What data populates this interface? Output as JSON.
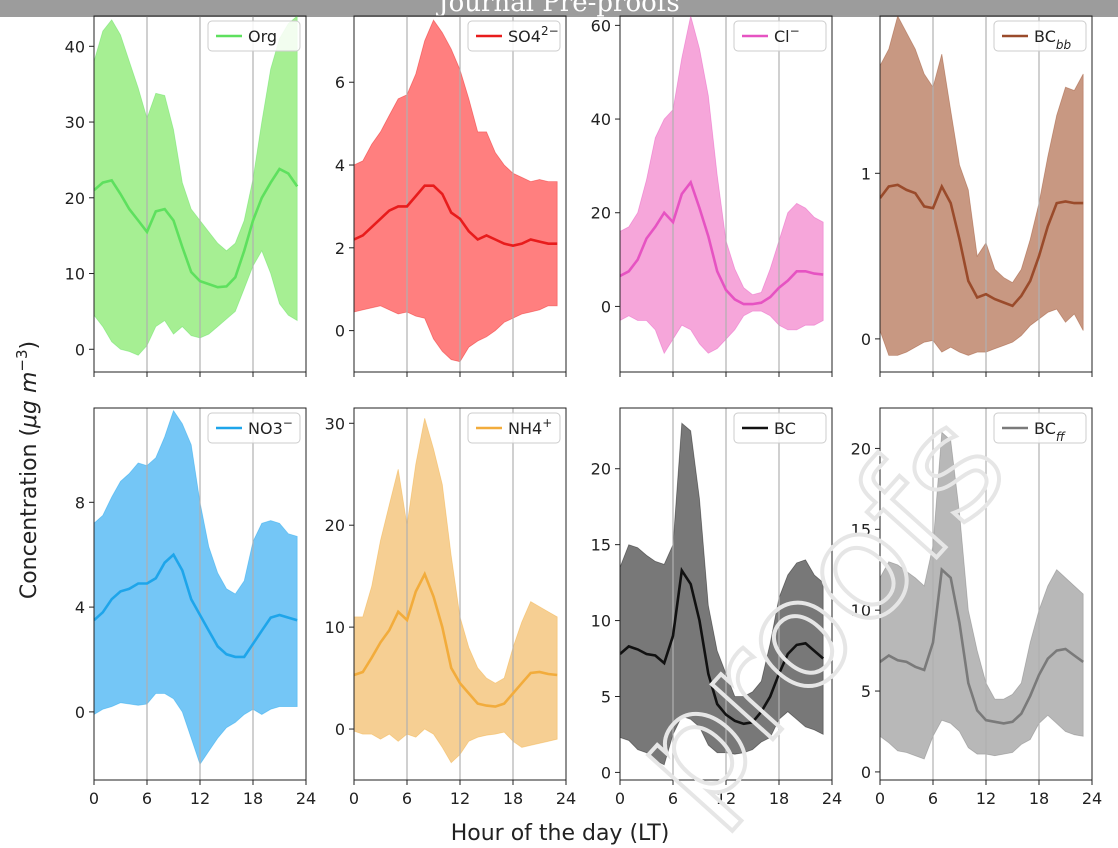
{
  "banner": {
    "text": "Journal Pre-proofs"
  },
  "watermark": {
    "text": "proofs"
  },
  "figure": {
    "ylabel_prefix": "Concentration (",
    "ylabel_unit": "μg m",
    "ylabel_exp": "−3",
    "ylabel_suffix": ")",
    "xlabel": "Hour of the day (LT)"
  },
  "chart_data": [
    {
      "type": "area",
      "legend": "Org",
      "legend_sub": "",
      "color": "#5ee05e",
      "fill": "#a6ef93",
      "alpha": 1,
      "xlim": [
        0,
        24
      ],
      "ylim": [
        -3,
        44
      ],
      "yticks": [
        0,
        10,
        20,
        30,
        40
      ],
      "xticks": [
        0,
        6,
        12,
        18,
        24
      ],
      "x": [
        0,
        1,
        2,
        3,
        4,
        5,
        6,
        7,
        8,
        9,
        10,
        11,
        12,
        13,
        14,
        15,
        16,
        17,
        18,
        19,
        20,
        21,
        22,
        23
      ],
      "mean": [
        21,
        22,
        22.3,
        20.5,
        18.5,
        17,
        15.5,
        18.2,
        18.5,
        17,
        13.5,
        10.2,
        9,
        8.6,
        8.2,
        8.3,
        9.5,
        13,
        17,
        20,
        22,
        23.8,
        23.2,
        21.5
      ],
      "upper": [
        38,
        42,
        43.5,
        41.5,
        38,
        34.5,
        30.5,
        33.8,
        33.5,
        29,
        22,
        18.5,
        17,
        15.5,
        14,
        13,
        14,
        17,
        22.5,
        30,
        37,
        41,
        43,
        44
      ],
      "lower": [
        4.5,
        3,
        1,
        0,
        -0.3,
        -0.8,
        0.5,
        3,
        3.8,
        2,
        3,
        1.8,
        1.5,
        2,
        3,
        4,
        5,
        8,
        11,
        13,
        10,
        6,
        4.5,
        3.8
      ],
      "legend_pos": "top-right"
    },
    {
      "type": "area",
      "legend": "SO4",
      "legend_sub": "",
      "legend_sup": "2−",
      "color": "#e81c1c",
      "fill": "#ff7f7f",
      "alpha": 1,
      "xlim": [
        0,
        24
      ],
      "ylim": [
        -1,
        7.6
      ],
      "yticks": [
        0,
        2,
        4,
        6
      ],
      "xticks": [
        0,
        6,
        12,
        18,
        24
      ],
      "x": [
        0,
        1,
        2,
        3,
        4,
        5,
        6,
        7,
        8,
        9,
        10,
        11,
        12,
        13,
        14,
        15,
        16,
        17,
        18,
        19,
        20,
        21,
        22,
        23
      ],
      "mean": [
        2.2,
        2.3,
        2.5,
        2.7,
        2.9,
        3,
        3,
        3.25,
        3.5,
        3.5,
        3.3,
        2.85,
        2.7,
        2.4,
        2.2,
        2.3,
        2.2,
        2.1,
        2.05,
        2.1,
        2.2,
        2.15,
        2.1,
        2.1
      ],
      "upper": [
        4,
        4.1,
        4.5,
        4.8,
        5.2,
        5.6,
        5.7,
        6.2,
        7,
        7.5,
        7.2,
        6.8,
        6.3,
        5.6,
        4.8,
        4.8,
        4.3,
        4,
        3.8,
        3.7,
        3.6,
        3.65,
        3.6,
        3.6
      ],
      "lower": [
        0.45,
        0.5,
        0.55,
        0.6,
        0.5,
        0.4,
        0.45,
        0.35,
        0.3,
        -0.2,
        -0.5,
        -0.7,
        -0.75,
        -0.4,
        -0.25,
        -0.15,
        0,
        0.2,
        0.3,
        0.4,
        0.45,
        0.5,
        0.6,
        0.6
      ],
      "legend_pos": "top-right"
    },
    {
      "type": "area",
      "legend": "Cl",
      "legend_sub": "",
      "legend_sup": "−",
      "color": "#e653c2",
      "fill": "#f6a6da",
      "alpha": 1,
      "xlim": [
        0,
        24
      ],
      "ylim": [
        -14,
        62
      ],
      "yticks": [
        0,
        20,
        40,
        60
      ],
      "xticks": [
        0,
        6,
        12,
        18,
        24
      ],
      "x": [
        0,
        1,
        2,
        3,
        4,
        5,
        6,
        7,
        8,
        9,
        10,
        11,
        12,
        13,
        14,
        15,
        16,
        17,
        18,
        19,
        20,
        21,
        22,
        23
      ],
      "mean": [
        6.5,
        7.5,
        10,
        14.5,
        17,
        20,
        18,
        24,
        26.5,
        21,
        15,
        7.5,
        3.5,
        1.5,
        0.5,
        0.5,
        0.8,
        2,
        4,
        5.5,
        7.5,
        7.5,
        7,
        6.8
      ],
      "upper": [
        16,
        17,
        20,
        27,
        36,
        40,
        42,
        53,
        62,
        55,
        45,
        28,
        14,
        8,
        4,
        2.5,
        3,
        8,
        14,
        20,
        22,
        21,
        19,
        18
      ],
      "lower": [
        -3,
        -2,
        -3,
        -3,
        -5,
        -10,
        -7,
        -4,
        -5,
        -8,
        -10,
        -9,
        -7,
        -5,
        -2,
        -1,
        -1,
        -2,
        -4,
        -5,
        -5,
        -4,
        -4,
        -3
      ],
      "legend_pos": "top-right"
    },
    {
      "type": "area",
      "legend": "BC",
      "legend_sub": "bb",
      "color": "#9a4b2b",
      "fill": "#c89882",
      "alpha": 1,
      "xlim": [
        0,
        24
      ],
      "ylim": [
        -0.2,
        1.95
      ],
      "yticks": [
        0,
        1
      ],
      "xticks": [
        0,
        6,
        12,
        18,
        24
      ],
      "x": [
        0,
        1,
        2,
        3,
        4,
        5,
        6,
        7,
        8,
        9,
        10,
        11,
        12,
        13,
        14,
        15,
        16,
        17,
        18,
        19,
        20,
        21,
        22,
        23
      ],
      "mean": [
        0.85,
        0.92,
        0.93,
        0.9,
        0.88,
        0.8,
        0.79,
        0.92,
        0.82,
        0.6,
        0.35,
        0.25,
        0.27,
        0.24,
        0.22,
        0.2,
        0.26,
        0.35,
        0.5,
        0.68,
        0.82,
        0.83,
        0.82,
        0.82
      ],
      "upper": [
        1.65,
        1.75,
        1.95,
        1.85,
        1.75,
        1.6,
        1.52,
        1.72,
        1.38,
        1.05,
        0.9,
        0.5,
        0.58,
        0.42,
        0.37,
        0.34,
        0.42,
        0.6,
        0.82,
        1.1,
        1.35,
        1.52,
        1.5,
        1.6
      ],
      "lower": [
        0.05,
        -0.1,
        -0.1,
        -0.08,
        -0.05,
        -0.02,
        -0.01,
        -0.08,
        -0.05,
        -0.08,
        -0.1,
        -0.08,
        -0.08,
        -0.06,
        -0.04,
        -0.02,
        0.02,
        0.08,
        0.12,
        0.16,
        0.18,
        0.1,
        0.15,
        0.05
      ],
      "legend_pos": "top-right"
    },
    {
      "type": "area",
      "legend": "NO3",
      "legend_sub": "",
      "legend_sup": "−",
      "color": "#1ea5ea",
      "fill": "#74c6f6",
      "alpha": 1,
      "xlim": [
        0,
        24
      ],
      "ylim": [
        -2.6,
        11.6
      ],
      "yticks": [
        0,
        4,
        8
      ],
      "xticks": [
        0,
        6,
        12,
        18,
        24
      ],
      "x": [
        0,
        1,
        2,
        3,
        4,
        5,
        6,
        7,
        8,
        9,
        10,
        11,
        12,
        13,
        14,
        15,
        16,
        17,
        18,
        19,
        20,
        21,
        22,
        23
      ],
      "mean": [
        3.5,
        3.8,
        4.3,
        4.6,
        4.7,
        4.9,
        4.9,
        5.1,
        5.7,
        6,
        5.4,
        4.3,
        3.7,
        3.1,
        2.5,
        2.2,
        2.1,
        2.1,
        2.6,
        3.1,
        3.6,
        3.7,
        3.6,
        3.5
      ],
      "upper": [
        7.2,
        7.5,
        8.2,
        8.8,
        9.1,
        9.5,
        9.4,
        9.7,
        10.5,
        11.5,
        11,
        10.2,
        8,
        6.3,
        5.3,
        4.7,
        4.5,
        5,
        6.5,
        7.2,
        7.3,
        7.2,
        6.8,
        6.7
      ],
      "lower": [
        -0.1,
        0.1,
        0.2,
        0.35,
        0.3,
        0.25,
        0.3,
        0.7,
        0.7,
        0.5,
        0,
        -1,
        -2,
        -1.5,
        -1,
        -0.6,
        -0.4,
        -0.1,
        0.1,
        -0.1,
        0.1,
        0.2,
        0.2,
        0.2
      ],
      "legend_pos": "top-right"
    },
    {
      "type": "area",
      "legend": "NH4",
      "legend_sub": "",
      "legend_sup": "+",
      "color": "#f2ac3c",
      "fill": "#f6cf93",
      "alpha": 1,
      "xlim": [
        0,
        24
      ],
      "ylim": [
        -5,
        31.5
      ],
      "yticks": [
        0,
        10,
        20,
        30
      ],
      "xticks": [
        0,
        6,
        12,
        18,
        24
      ],
      "x": [
        0,
        1,
        2,
        3,
        4,
        5,
        6,
        7,
        8,
        9,
        10,
        11,
        12,
        13,
        14,
        15,
        16,
        17,
        18,
        19,
        20,
        21,
        22,
        23
      ],
      "mean": [
        5.3,
        5.6,
        7,
        8.5,
        9.7,
        11.5,
        10.7,
        13.5,
        15.2,
        13,
        10,
        6,
        4.5,
        3.5,
        2.5,
        2.3,
        2.2,
        2.5,
        3.5,
        4.5,
        5.5,
        5.6,
        5.4,
        5.3
      ],
      "upper": [
        11,
        11,
        14,
        18.5,
        22,
        25.5,
        20,
        26,
        30.5,
        27.5,
        24,
        17,
        11,
        8,
        6,
        5,
        4.5,
        5,
        8,
        10.5,
        12.5,
        12,
        11.5,
        11
      ],
      "lower": [
        -0.2,
        -0.5,
        -0.5,
        -1,
        -0.5,
        -1.2,
        -0.5,
        -0.8,
        0,
        -0.5,
        -1.8,
        -3.3,
        -2.5,
        -1.2,
        -0.8,
        -0.6,
        -0.5,
        -0.3,
        -1.2,
        -1.8,
        -1.6,
        -1.4,
        -1.2,
        -1
      ],
      "legend_pos": "top-right"
    },
    {
      "type": "area",
      "legend": "BC",
      "legend_sub": "",
      "color": "#111111",
      "fill": "#787878",
      "alpha": 1,
      "xlim": [
        0,
        24
      ],
      "ylim": [
        -0.5,
        24
      ],
      "yticks": [
        0,
        5,
        10,
        15,
        20
      ],
      "xticks": [
        0,
        6,
        12,
        18,
        24
      ],
      "x": [
        0,
        1,
        2,
        3,
        4,
        5,
        6,
        7,
        8,
        9,
        10,
        11,
        12,
        13,
        14,
        15,
        16,
        17,
        18,
        19,
        20,
        21,
        22,
        23
      ],
      "mean": [
        7.8,
        8.3,
        8.1,
        7.8,
        7.7,
        7.2,
        9,
        13.3,
        12.4,
        10,
        6.5,
        4.5,
        3.8,
        3.4,
        3.2,
        3.3,
        4,
        5,
        6.5,
        7.8,
        8.4,
        8.5,
        8,
        7.5
      ],
      "upper": [
        13.5,
        15,
        14.8,
        14.3,
        13.9,
        13.7,
        15,
        23,
        22.5,
        18,
        11,
        8,
        6.5,
        5,
        5,
        5.3,
        6,
        8.5,
        11.5,
        13,
        13.8,
        14,
        13,
        12.5
      ],
      "lower": [
        2.3,
        2.1,
        1.5,
        1.3,
        0.8,
        0.5,
        2.5,
        3.7,
        3.5,
        3,
        1.8,
        1.3,
        1.3,
        1.2,
        1.3,
        1.5,
        2,
        2.3,
        3.5,
        4,
        3.5,
        3,
        2.8,
        2.5
      ],
      "legend_pos": "top-right"
    },
    {
      "type": "area",
      "legend": "BC",
      "legend_sub": "ff",
      "color": "#7a7a7a",
      "fill": "#b8b8b8",
      "alpha": 1,
      "xlim": [
        0,
        24
      ],
      "ylim": [
        -0.5,
        22.5
      ],
      "yticks": [
        0,
        5,
        10,
        15,
        20
      ],
      "xticks": [
        0,
        6,
        12,
        18,
        24
      ],
      "x": [
        0,
        1,
        2,
        3,
        4,
        5,
        6,
        7,
        8,
        9,
        10,
        11,
        12,
        13,
        14,
        15,
        16,
        17,
        18,
        19,
        20,
        21,
        22,
        23
      ],
      "mean": [
        6.8,
        7.2,
        6.9,
        6.8,
        6.5,
        6.3,
        8,
        12.5,
        12,
        9.2,
        5.5,
        3.8,
        3.2,
        3.1,
        3.0,
        3.1,
        3.6,
        4.7,
        6,
        7,
        7.5,
        7.6,
        7.2,
        6.8
      ],
      "upper": [
        12,
        13,
        12.8,
        12.4,
        12,
        11.5,
        14,
        21,
        20.5,
        16,
        10,
        7.5,
        5.5,
        4.5,
        4.5,
        4.8,
        5.5,
        8,
        10,
        11.5,
        12.5,
        12,
        11.5,
        11
      ],
      "lower": [
        2.2,
        1.8,
        1.3,
        1.2,
        1,
        0.8,
        2.2,
        3.2,
        3,
        2.5,
        1.5,
        1.1,
        1.1,
        1,
        1.1,
        1.2,
        1.7,
        2,
        3,
        3.5,
        3,
        2.5,
        2.3,
        2.2
      ],
      "legend_pos": "top-right"
    }
  ]
}
